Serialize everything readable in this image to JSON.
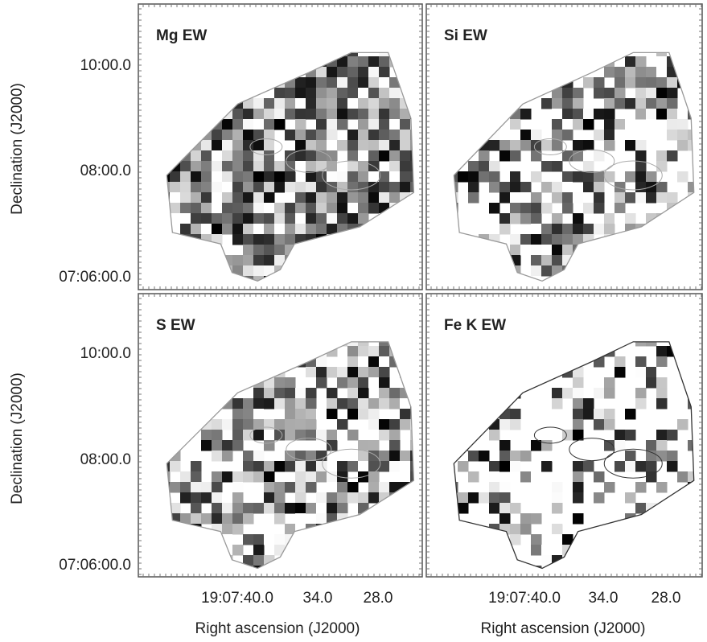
{
  "panels": [
    {
      "label": "Mg EW"
    },
    {
      "label": "Si EW"
    },
    {
      "label": "S EW"
    },
    {
      "label": "Fe K EW"
    }
  ],
  "y_axis": {
    "title": "Declination (J2000)",
    "ticks": [
      "10:00.0",
      "08:00.0",
      "07:06:00.0"
    ]
  },
  "x_axis": {
    "title": "Right ascension (J2000)",
    "ticks": [
      "19:07:40.0",
      "34.0",
      "28.0"
    ]
  }
}
